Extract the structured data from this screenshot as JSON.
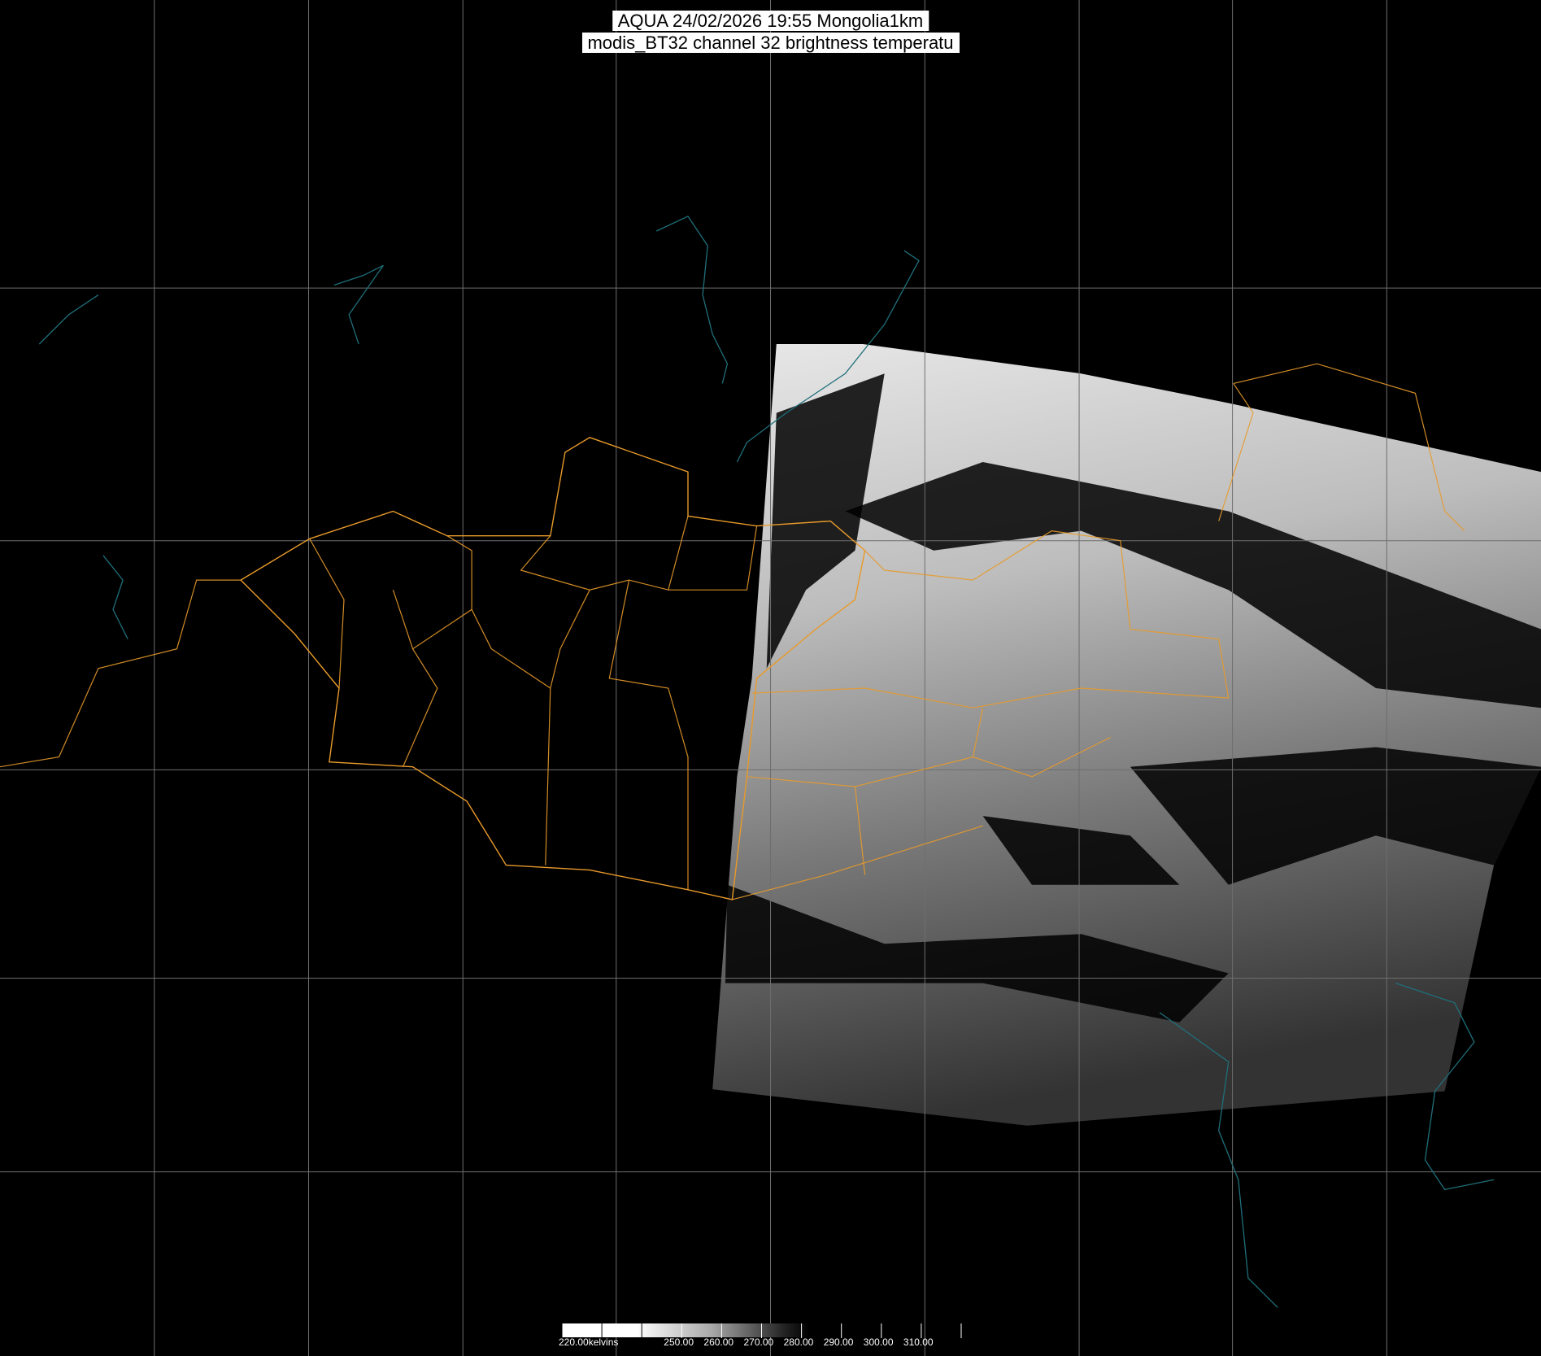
{
  "header": {
    "title_line1": "AQUA 24/02/2026 19:55 Mongolia1km",
    "title_line2": "modis_BT32 channel 32 brightness temperatu"
  },
  "colorbar": {
    "unit": "kelvins",
    "labels": [
      "220.00kelvins",
      "250.00",
      "260.00",
      "270.00",
      "280.00",
      "290.00",
      "300.00",
      "310.00"
    ],
    "min": 220,
    "max": 320,
    "gradient": "white (cold) to black (warm)"
  },
  "colors": {
    "background": "#000000",
    "graticule": "#6e6e6e",
    "political_borders": "#e89a2a",
    "coastlines_lakes": "#1f6f7a",
    "title_box": "#ffffff"
  }
}
